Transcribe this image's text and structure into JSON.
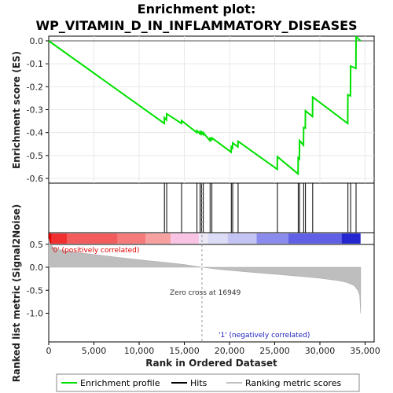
{
  "chart_data": {
    "type": "line",
    "title_line1": "Enrichment plot:",
    "title_line2": "WP_VITAMIN_D_IN_INFLAMMATORY_DISEASES",
    "xlabel": "Rank in Ordered Dataset",
    "ylabel_top": "Enrichment score (ES)",
    "ylabel_bottom": "Ranked list metric (Signal2Noise)",
    "xlim": [
      0,
      36000
    ],
    "es_ylim": [
      -0.6,
      0.0
    ],
    "metric_ylim": [
      -1.0,
      0.5
    ],
    "x_ticks": [
      0,
      5000,
      10000,
      15000,
      20000,
      25000,
      30000,
      35000
    ],
    "x_tick_labels": [
      "0",
      "5,000",
      "10,000",
      "15,000",
      "20,000",
      "25,000",
      "30,000",
      "35,000"
    ],
    "es_ticks": [
      0.0,
      -0.1,
      -0.2,
      -0.3,
      -0.4,
      -0.5,
      -0.6
    ],
    "es_tick_labels": [
      "0.0",
      "-0.1",
      "-0.2",
      "-0.3",
      "-0.4",
      "-0.5",
      "-0.6"
    ],
    "metric_ticks": [
      0.5,
      0.0,
      -0.5,
      -1.0
    ],
    "metric_tick_labels": [
      "0.5",
      "0.0",
      "-0.5",
      "-1.0"
    ],
    "n_genes": 34500,
    "zero_cross": 16949,
    "zero_cross_label": "Zero cross at 16949",
    "positive_label": "'0' (positively correlated)",
    "negative_label": "'1' (negatively correlated)",
    "hits": [
      12800,
      13050,
      14700,
      16400,
      16750,
      16900,
      17100,
      17850,
      18050,
      20200,
      20350,
      20950,
      25300,
      27600,
      27750,
      28200,
      28400,
      29200,
      33100,
      33400,
      34000
    ],
    "es_curve": [
      [
        0,
        0.0
      ],
      [
        12780,
        -0.36
      ],
      [
        12800,
        -0.335
      ],
      [
        13030,
        -0.345
      ],
      [
        13050,
        -0.318
      ],
      [
        14680,
        -0.36
      ],
      [
        14700,
        -0.348
      ],
      [
        16380,
        -0.4
      ],
      [
        16400,
        -0.392
      ],
      [
        16730,
        -0.405
      ],
      [
        16750,
        -0.397
      ],
      [
        16880,
        -0.405
      ],
      [
        16900,
        -0.398
      ],
      [
        17080,
        -0.408
      ],
      [
        17100,
        -0.4
      ],
      [
        17830,
        -0.435
      ],
      [
        17850,
        -0.425
      ],
      [
        18030,
        -0.432
      ],
      [
        18050,
        -0.423
      ],
      [
        20180,
        -0.485
      ],
      [
        20200,
        -0.462
      ],
      [
        20330,
        -0.468
      ],
      [
        20350,
        -0.445
      ],
      [
        20930,
        -0.462
      ],
      [
        20950,
        -0.438
      ],
      [
        25280,
        -0.56
      ],
      [
        25300,
        -0.505
      ],
      [
        27580,
        -0.58
      ],
      [
        27600,
        -0.51
      ],
      [
        27730,
        -0.515
      ],
      [
        27750,
        -0.435
      ],
      [
        28180,
        -0.455
      ],
      [
        28200,
        -0.378
      ],
      [
        28380,
        -0.38
      ],
      [
        28400,
        -0.305
      ],
      [
        29180,
        -0.33
      ],
      [
        29200,
        -0.245
      ],
      [
        33080,
        -0.36
      ],
      [
        33100,
        -0.235
      ],
      [
        33380,
        -0.24
      ],
      [
        33400,
        -0.11
      ],
      [
        33980,
        -0.12
      ],
      [
        34000,
        0.018
      ],
      [
        34500,
        0.0
      ]
    ],
    "metric_curve": [
      [
        0,
        0.62
      ],
      [
        150,
        0.5
      ],
      [
        500,
        0.43
      ],
      [
        1000,
        0.39
      ],
      [
        2000,
        0.35
      ],
      [
        4000,
        0.3
      ],
      [
        7000,
        0.23
      ],
      [
        10000,
        0.16
      ],
      [
        13000,
        0.1
      ],
      [
        15000,
        0.06
      ],
      [
        16949,
        0.0
      ],
      [
        19000,
        -0.05
      ],
      [
        22000,
        -0.1
      ],
      [
        25000,
        -0.15
      ],
      [
        28000,
        -0.2
      ],
      [
        30000,
        -0.24
      ],
      [
        32000,
        -0.29
      ],
      [
        33000,
        -0.33
      ],
      [
        33800,
        -0.4
      ],
      [
        34200,
        -0.5
      ],
      [
        34400,
        -0.6
      ],
      [
        34500,
        -1.0
      ]
    ],
    "color_bar": [
      [
        0,
        300,
        "#e00000"
      ],
      [
        300,
        2000,
        "#f03030"
      ],
      [
        2000,
        7600,
        "#f25c5c"
      ],
      [
        7600,
        10700,
        "#f57a7a"
      ],
      [
        10700,
        13500,
        "#f7a0a0"
      ],
      [
        13500,
        16600,
        "#f9c4e4"
      ],
      [
        16600,
        17600,
        "#ece8f6"
      ],
      [
        17600,
        19800,
        "#dcdcf6"
      ],
      [
        19800,
        23000,
        "#c4c4f4"
      ],
      [
        23000,
        26500,
        "#8b8bee"
      ],
      [
        26500,
        32400,
        "#6060e6"
      ],
      [
        32400,
        34500,
        "#2626d0"
      ]
    ],
    "legend": [
      {
        "label": "Enrichment profile",
        "color": "#00e000"
      },
      {
        "label": "Hits",
        "color": "#000000"
      },
      {
        "label": "Ranking metric scores",
        "color": "#c0c0c0"
      }
    ]
  }
}
